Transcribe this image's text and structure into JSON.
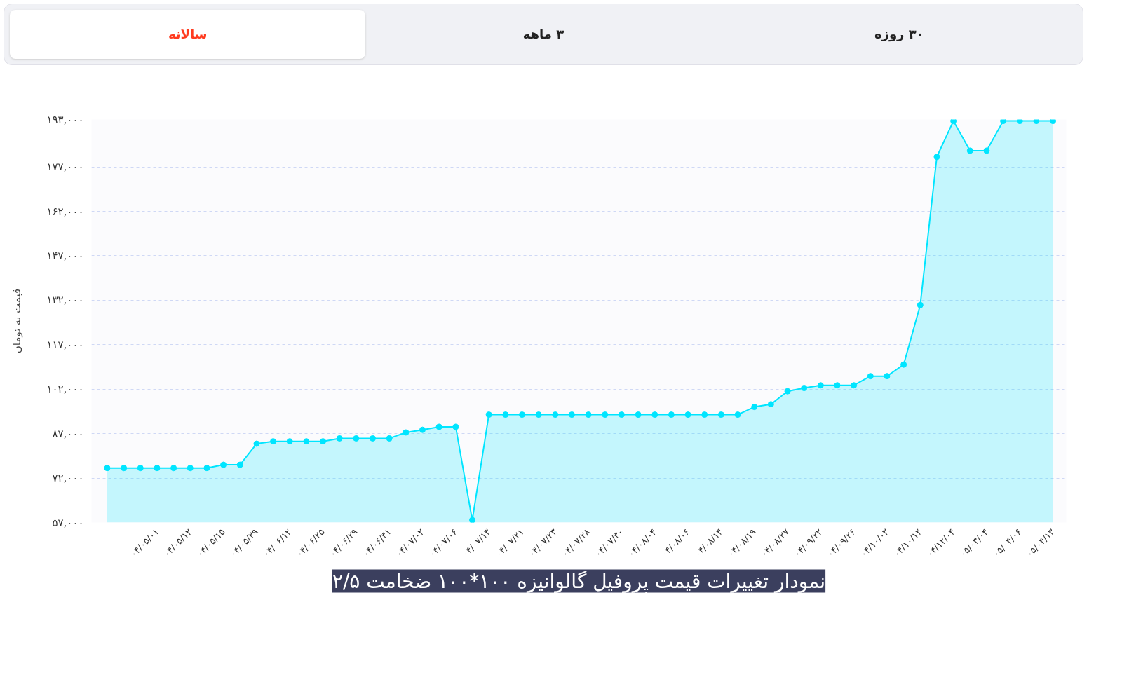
{
  "chart_data": {
    "type": "area",
    "title": "نمودار تغییرات قیمت پروفیل گالوانیزه ۱۰۰*۱۰۰ ضخامت ۲/۵",
    "ylabel": "قیمت به تومان",
    "annotations": [
      "سالانه",
      "۳ ماهه",
      "۳۰ روزه"
    ],
    "categories": [
      null,
      null,
      null,
      "۰۴/۰۵/۰۱",
      null,
      "۰۴/۰۵/۱۲",
      null,
      "۰۴/۰۵/۱۵",
      null,
      "۰۴/۰۵/۲۹",
      null,
      "۰۴/۰۶/۱۲",
      null,
      "۰۴/۰۶/۲۵",
      null,
      "۰۴/۰۶/۲۹",
      null,
      "۰۴/۰۶/۳۱",
      null,
      "۰۴/۰۷/۰۲",
      null,
      "۰۴/۰۷/۰۶",
      null,
      "۰۴/۰۷/۱۳",
      null,
      "۰۴/۰۷/۲۱",
      null,
      "۰۴/۰۷/۲۳",
      null,
      "۰۴/۰۷/۲۸",
      null,
      "۰۴/۰۷/۳۰",
      null,
      "۰۴/۰۸/۰۴",
      null,
      "۰۴/۰۸/۰۶",
      null,
      "۰۴/۰۸/۱۴",
      null,
      "۰۴/۰۸/۱۹",
      null,
      "۰۴/۰۸/۲۷",
      null,
      "۰۴/۰۹/۲۲",
      null,
      "۰۴/۰۹/۲۶",
      null,
      "۰۴/۱۰/۰۳",
      null,
      "۰۴/۱۰/۱۴",
      null,
      "۰۴/۱۲/۰۴",
      null,
      "۰۵/۰۳/۰۴",
      null,
      "۰۵/۰۴/۰۶",
      null,
      "۰۵/۰۴/۱۳"
    ],
    "series": [
      {
        "color": "#00e5ff",
        "values": [
          75400,
          75400,
          75400,
          75400,
          75400,
          75400,
          75400,
          76500,
          76500,
          83600,
          84400,
          84400,
          84400,
          84400,
          85400,
          85400,
          85400,
          85400,
          87400,
          88300,
          89300,
          89300,
          57800,
          93400,
          93400,
          93400,
          93400,
          93400,
          93400,
          93400,
          93400,
          93400,
          93400,
          93400,
          93400,
          93400,
          93400,
          93400,
          93400,
          96000,
          96900,
          101300,
          102400,
          103300,
          103300,
          103300,
          106400,
          106400,
          110300,
          130400,
          180400,
          192500,
          182500,
          182500,
          192500,
          192500,
          192500,
          192500
        ]
      }
    ],
    "ylim": [
      57000,
      193000
    ],
    "yticks": [
      {
        "value": 57000,
        "label": "۵۷,۰۰۰"
      },
      {
        "value": 72000,
        "label": "۷۲,۰۰۰"
      },
      {
        "value": 87000,
        "label": "۸۷,۰۰۰"
      },
      {
        "value": 102000,
        "label": "۱۰۲,۰۰۰"
      },
      {
        "value": 117000,
        "label": "۱۱۷,۰۰۰"
      },
      {
        "value": 132000,
        "label": "۱۳۲,۰۰۰"
      },
      {
        "value": 147000,
        "label": "۱۴۷,۰۰۰"
      },
      {
        "value": 162000,
        "label": "۱۶۲,۰۰۰"
      },
      {
        "value": 177000,
        "label": "۱۷۷,۰۰۰"
      },
      {
        "value": 193000,
        "label": "۱۹۳,۰۰۰"
      }
    ],
    "grid": "y",
    "marker": "circle"
  }
}
